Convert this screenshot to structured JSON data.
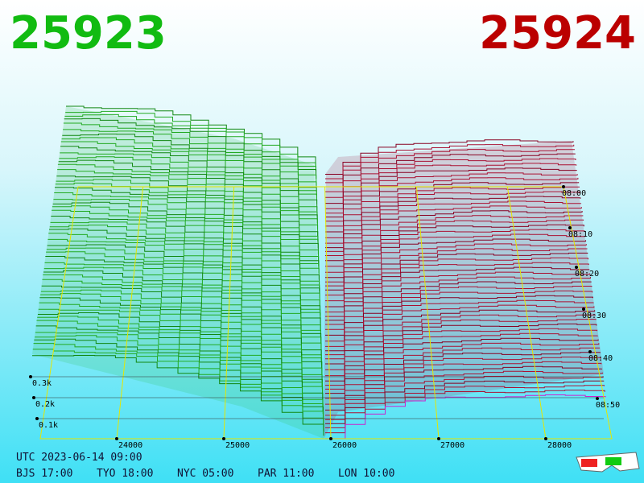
{
  "header": {
    "bid": "25923",
    "ask": "25924"
  },
  "price_axis": [
    "24000",
    "25000",
    "26000",
    "27000",
    "28000"
  ],
  "time_axis": [
    "08:00",
    "08:10",
    "08:20",
    "08:30",
    "08:40",
    "08:50"
  ],
  "depth_axis": [
    "0.3k",
    "0.2k",
    "0.1k"
  ],
  "footer": {
    "utc": "UTC 2023-06-14 09:00",
    "zones": [
      "BJS 17:00",
      "TYO 18:00",
      "NYC 05:00",
      "PAR 11:00",
      "LON 10:00"
    ]
  }
}
